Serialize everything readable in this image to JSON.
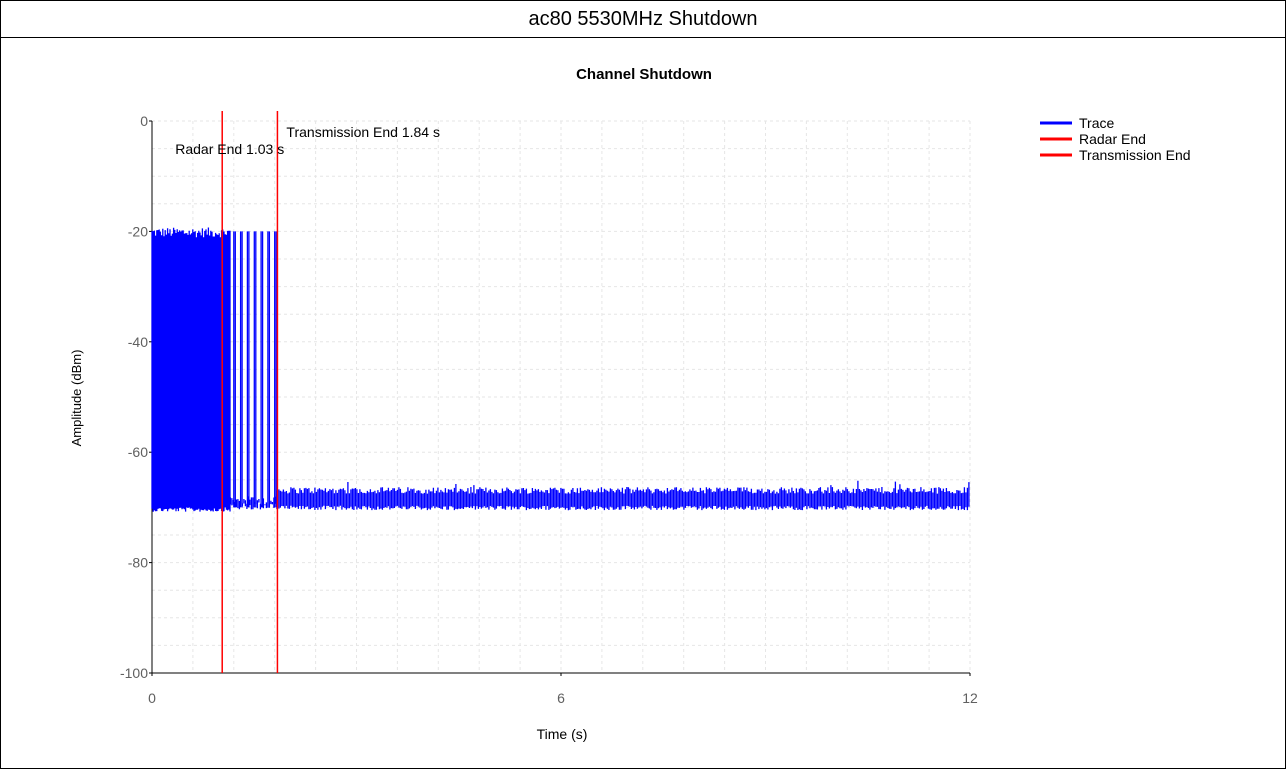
{
  "page": {
    "header_title": "ac80 5530MHz Shutdown"
  },
  "chart_data": {
    "type": "line",
    "title": "Channel Shutdown",
    "xlabel": "Time (s)",
    "ylabel": "Amplitude (dBm)",
    "xlim": [
      0,
      12
    ],
    "ylim": [
      -100,
      0
    ],
    "x_ticks": [
      0,
      6,
      12
    ],
    "y_ticks": [
      0,
      -20,
      -40,
      -60,
      -80,
      -100
    ],
    "grid": true,
    "legend_position": "top-right",
    "series": [
      {
        "name": "Trace",
        "color": "#0000ff",
        "segments": [
          {
            "x_start": 0,
            "x_end": 1.15,
            "description_values": {
              "peak_dBm": -20,
              "floor_dBm": -70
            }
          },
          {
            "x_start": 1.15,
            "x_end": 1.84,
            "pulse_times_s": [
              1.2,
              1.3,
              1.4,
              1.5,
              1.6,
              1.7,
              1.8
            ],
            "peak_dBm": -20
          },
          {
            "x_start": 1.84,
            "x_end": 12,
            "mean_dBm": -68.5,
            "min_dBm": -70.5,
            "max_dBm": -65
          }
        ]
      },
      {
        "name": "Radar End",
        "color": "#ff0000",
        "x": 1.03
      },
      {
        "name": "Transmission End",
        "color": "#ff0000",
        "x": 1.84
      }
    ],
    "annotations": [
      {
        "text": "Radar End 1.03 s",
        "x": 1.03
      },
      {
        "text": "Transmission End 1.84 s",
        "x": 1.84
      }
    ]
  }
}
